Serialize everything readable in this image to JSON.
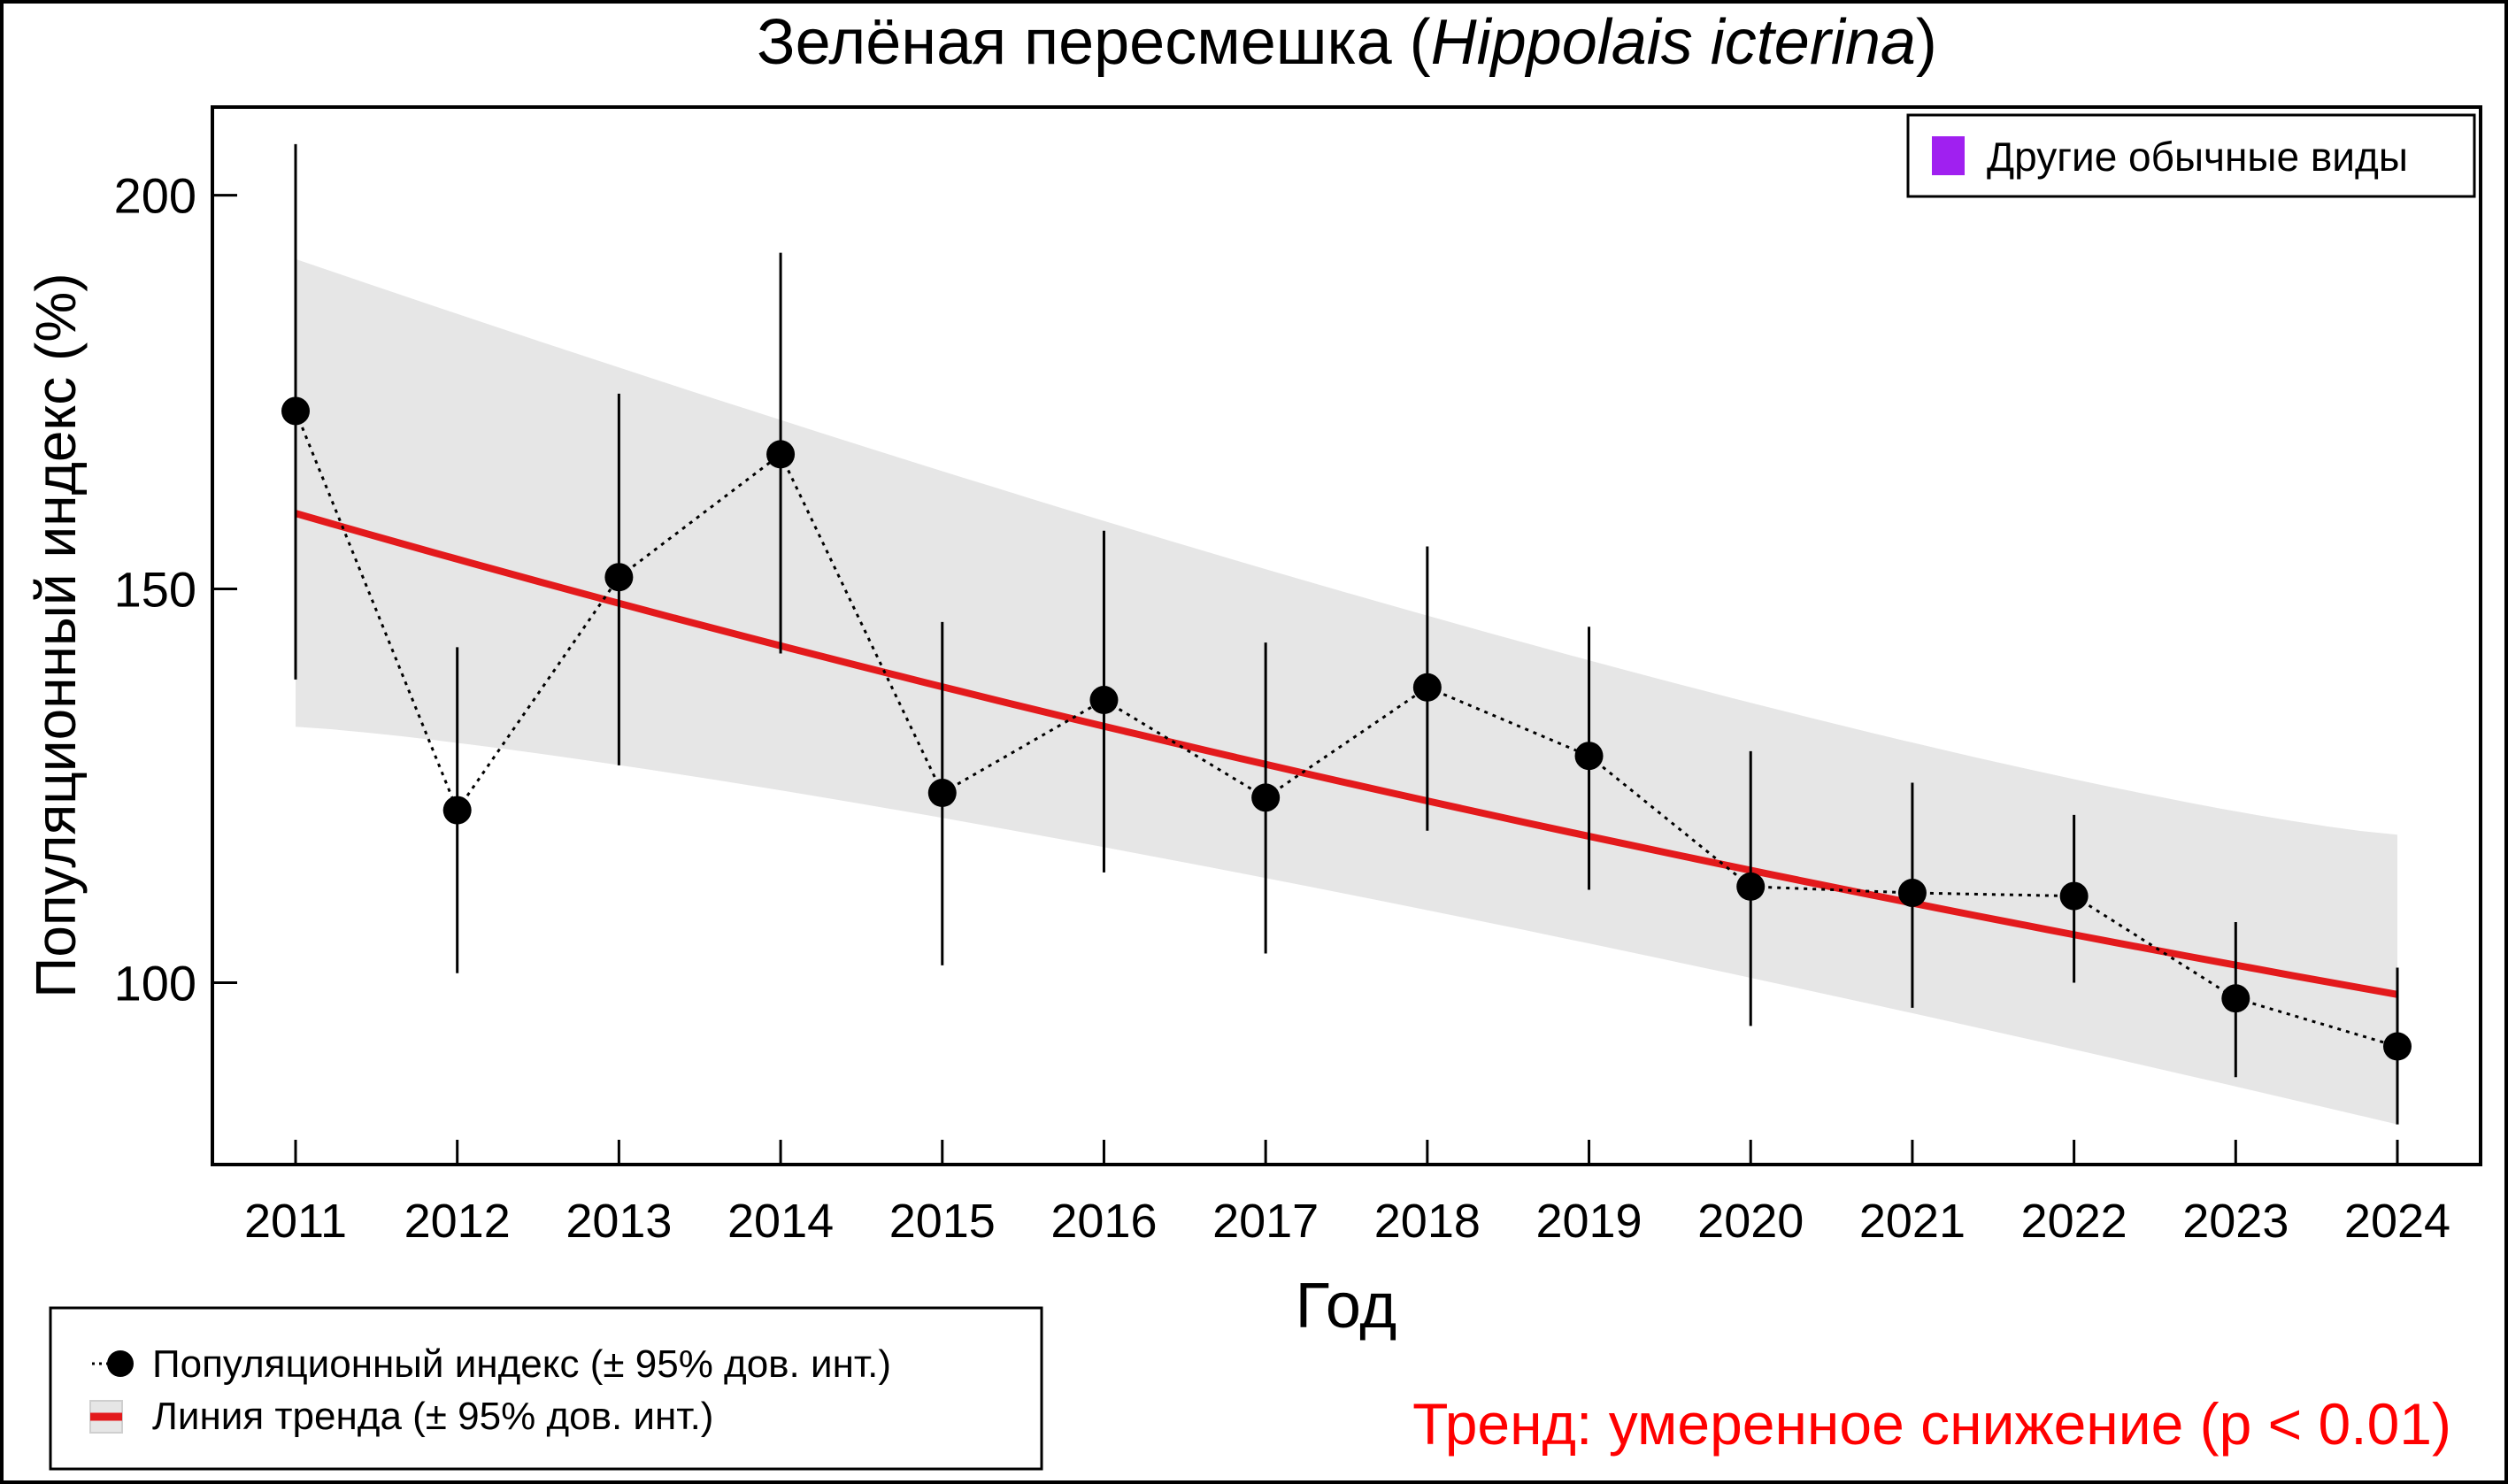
{
  "chart_data": {
    "type": "line",
    "title": "Зелёная пересмешка (",
    "title_latin": "Hippolais icterina",
    "title_close": ")",
    "xlabel": "Год",
    "ylabel": "Популяционный индекс (%)",
    "ylim": [
      76.9,
      211.2
    ],
    "yticks": [
      100,
      150,
      200
    ],
    "ytick_labels": [
      "100",
      "150",
      "200"
    ],
    "x": [
      2011,
      2012,
      2013,
      2014,
      2015,
      2016,
      2017,
      2018,
      2019,
      2020,
      2021,
      2022,
      2023,
      2024
    ],
    "xtick_labels": [
      "2011",
      "2012",
      "2013",
      "2014",
      "2015",
      "2016",
      "2017",
      "2018",
      "2019",
      "2020",
      "2021",
      "2022",
      "2023",
      "2024"
    ],
    "series": [
      {
        "name": "Популяционный индекс (± 95% дов. инт.)",
        "values": [
          172.6,
          121.9,
          151.5,
          167.1,
          124.1,
          135.9,
          123.5,
          137.5,
          128.8,
          112.2,
          111.4,
          111.0,
          98.0,
          91.9
        ],
        "ci_upper": [
          206.5,
          142.6,
          174.8,
          192.7,
          145.8,
          157.4,
          143.2,
          155.4,
          145.2,
          129.4,
          125.4,
          121.3,
          107.7,
          101.9
        ],
        "ci_lower": [
          138.5,
          101.2,
          127.6,
          141.8,
          102.2,
          114.0,
          103.7,
          119.3,
          111.8,
          94.5,
          96.8,
          100.0,
          88.0,
          82.0
        ]
      },
      {
        "name": "Линия тренда (± 95% дов. инт.)",
        "trend_start": 159.6,
        "trend_end": 98.5,
        "band_upper_start": 191.9,
        "band_upper_end": 118.8,
        "band_lower_start": 132.5,
        "band_lower_end": 82.0
      }
    ],
    "legend_top_right": "Другие обычные виды",
    "legend_bottom_left": [
      "Популяционный индекс (± 95% дов. инт.)",
      "Линия тренда (± 95% дов. инт.)"
    ],
    "annotation": "Тренд: умеренное снижение (p < 0.01)",
    "grid": false,
    "legend_placement": "top-right"
  },
  "colors": {
    "trend": "#e31a1c",
    "band": "#e6e6e6",
    "points": "#000000",
    "other_species": "#a020f0",
    "annotation": "#ff0000"
  }
}
